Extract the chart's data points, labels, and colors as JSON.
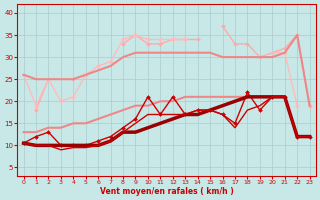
{
  "background_color": "#c8e8e8",
  "grid_color": "#aacccc",
  "xlabel": "Vent moyen/en rafales ( km/h )",
  "xlim": [
    -0.5,
    23.5
  ],
  "ylim": [
    3,
    42
  ],
  "yticks": [
    5,
    10,
    15,
    20,
    25,
    30,
    35,
    40
  ],
  "xticks": [
    0,
    1,
    2,
    3,
    4,
    5,
    6,
    7,
    8,
    9,
    10,
    11,
    12,
    13,
    14,
    15,
    16,
    17,
    18,
    19,
    20,
    21,
    22,
    23
  ],
  "series": [
    {
      "x": [
        0,
        1,
        2,
        3,
        4,
        5,
        6,
        7,
        8,
        9,
        10,
        11,
        12,
        13,
        14,
        15,
        16,
        17,
        18,
        19,
        20,
        21,
        22,
        23
      ],
      "y": [
        null,
        18,
        25,
        null,
        25,
        null,
        null,
        null,
        33,
        35,
        33,
        33,
        34,
        34,
        34,
        null,
        37,
        33,
        33,
        30,
        31,
        32,
        35,
        19
      ],
      "color": "#ffaaaa",
      "lw": 1.0,
      "marker": "D",
      "markersize": 2.0
    },
    {
      "x": [
        0,
        1,
        2,
        3,
        4,
        5,
        6,
        7,
        8,
        9,
        10,
        11,
        12,
        13,
        14,
        15,
        16,
        17,
        18,
        19,
        20,
        21,
        22,
        23
      ],
      "y": [
        26,
        19,
        25,
        20,
        21,
        26,
        28,
        29,
        34,
        35,
        34,
        34,
        34,
        34,
        null,
        null,
        null,
        null,
        22,
        null,
        31,
        31,
        19,
        null
      ],
      "color": "#ffbbbb",
      "lw": 1.0,
      "marker": "D",
      "markersize": 2.0
    },
    {
      "x": [
        0,
        1,
        2,
        3,
        4,
        5,
        6,
        7,
        8,
        9,
        10,
        11,
        12,
        13,
        14,
        15,
        16,
        17,
        18,
        19,
        20,
        21,
        22,
        23
      ],
      "y": [
        26,
        25,
        25,
        25,
        25,
        26,
        27,
        28,
        30,
        31,
        31,
        31,
        31,
        31,
        31,
        31,
        30,
        30,
        30,
        30,
        30,
        31,
        35,
        19
      ],
      "color": "#ee8888",
      "lw": 1.5,
      "marker": null,
      "markersize": 0
    },
    {
      "x": [
        0,
        1,
        2,
        3,
        4,
        5,
        6,
        7,
        8,
        9,
        10,
        11,
        12,
        13,
        14,
        15,
        16,
        17,
        18,
        19,
        20,
        21,
        22,
        23
      ],
      "y": [
        13,
        13,
        14,
        14,
        15,
        15,
        16,
        17,
        18,
        19,
        19,
        20,
        20,
        21,
        21,
        21,
        21,
        21,
        21,
        21,
        21,
        21,
        12,
        12
      ],
      "color": "#ee8888",
      "lw": 1.5,
      "marker": null,
      "markersize": 0
    },
    {
      "x": [
        0,
        1,
        2,
        3,
        4,
        5,
        6,
        7,
        8,
        9,
        10,
        11,
        12,
        13,
        14,
        15,
        16,
        17,
        18,
        19,
        20,
        21,
        22,
        23
      ],
      "y": [
        10.5,
        12,
        13,
        10,
        10,
        10,
        11,
        12,
        14,
        16,
        21,
        17,
        21,
        17,
        18,
        18,
        17,
        15,
        22,
        18,
        21,
        21,
        12,
        12
      ],
      "color": "#cc0000",
      "lw": 1.0,
      "marker": "D",
      "markersize": 2.0
    },
    {
      "x": [
        0,
        1,
        2,
        3,
        4,
        5,
        6,
        7,
        8,
        9,
        10,
        11,
        12,
        13,
        14,
        15,
        16,
        17,
        18,
        19,
        20,
        21,
        22,
        23
      ],
      "y": [
        10.5,
        10,
        10,
        10,
        10,
        10,
        10,
        11,
        13,
        13,
        14,
        15,
        16,
        17,
        17,
        18,
        19,
        20,
        21,
        21,
        21,
        21,
        12,
        12
      ],
      "color": "#990000",
      "lw": 2.5,
      "marker": null,
      "markersize": 0
    },
    {
      "x": [
        0,
        1,
        2,
        3,
        4,
        5,
        6,
        7,
        8,
        9,
        10,
        11,
        12,
        13,
        14,
        15,
        16,
        17,
        18,
        19,
        20,
        21,
        22,
        23
      ],
      "y": [
        10.5,
        10,
        10,
        9,
        9.5,
        9.5,
        10,
        11,
        13,
        15,
        17,
        17,
        17,
        17,
        18,
        18,
        17,
        14,
        18,
        19,
        21,
        21,
        12,
        12
      ],
      "color": "#cc0000",
      "lw": 1.0,
      "marker": null,
      "markersize": 0
    }
  ]
}
